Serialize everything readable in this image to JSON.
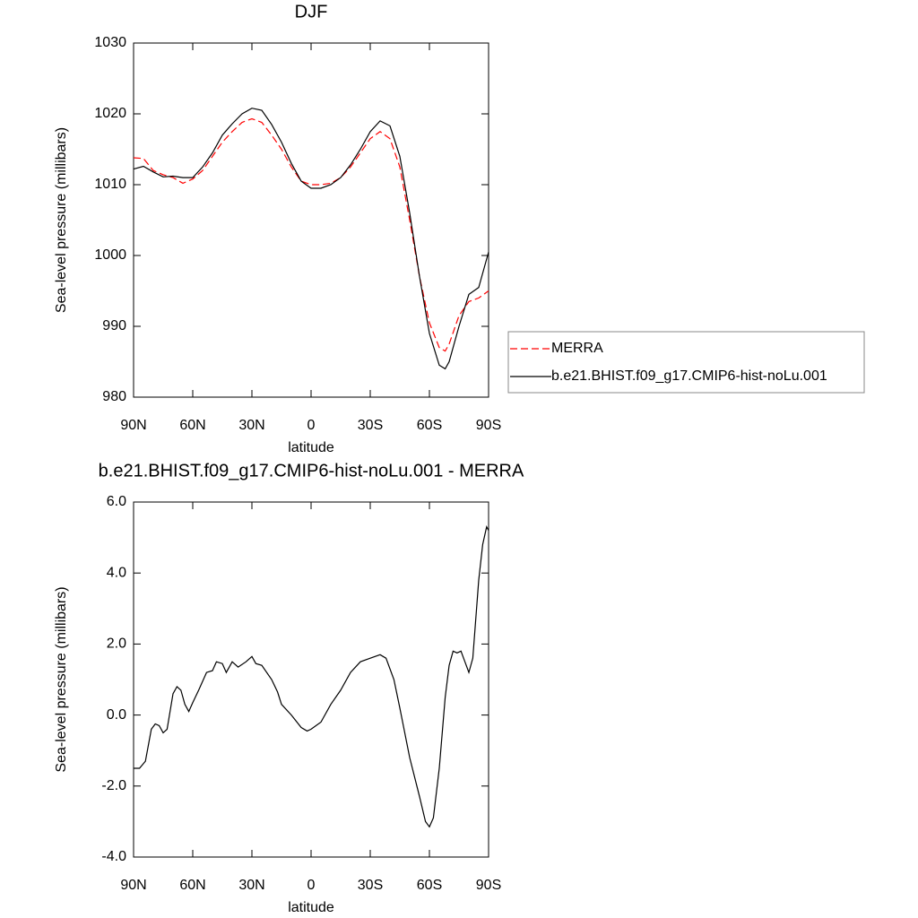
{
  "chart_data": [
    {
      "type": "line",
      "title": "DJF",
      "xlabel": "latitude",
      "ylabel": "Sea-level pressure (millibars)",
      "xlim": [
        90,
        -90
      ],
      "xticks": [
        {
          "value": 90,
          "label": "90N"
        },
        {
          "value": 60,
          "label": "60N"
        },
        {
          "value": 30,
          "label": "30N"
        },
        0,
        {
          "value": -30,
          "label": "30S"
        },
        {
          "value": -60,
          "label": "60S"
        },
        {
          "value": -90,
          "label": "90S"
        }
      ],
      "ylim": [
        980,
        1030
      ],
      "yticks": [
        980,
        990,
        1000,
        1010,
        1020,
        1030
      ],
      "legend": "right",
      "x": [
        90,
        85,
        80,
        75,
        70,
        65,
        60,
        55,
        50,
        45,
        40,
        35,
        30,
        25,
        20,
        15,
        10,
        5,
        0,
        -5,
        -10,
        -15,
        -20,
        -25,
        -30,
        -35,
        -40,
        -45,
        -50,
        -55,
        -60,
        -65,
        -68,
        -70,
        -75,
        -80,
        -85,
        -90
      ],
      "series": [
        {
          "name": "MERRA",
          "color": "#ff0000",
          "style": "dashed",
          "values": [
            1013.8,
            1013.7,
            1012,
            1011.4,
            1011,
            1010.2,
            1010.8,
            1012,
            1014,
            1016,
            1017.5,
            1018.8,
            1019.3,
            1018.8,
            1017,
            1015,
            1012.5,
            1010.5,
            1010,
            1010,
            1010.2,
            1011,
            1012.5,
            1014.5,
            1016.5,
            1017.5,
            1016.5,
            1012.5,
            1005,
            997,
            990.5,
            987,
            986.5,
            987.5,
            991.5,
            993.5,
            994,
            995
          ]
        },
        {
          "name": "b.e21.BHIST.f09_g17.CMIP6-hist-noLu.001",
          "color": "#000000",
          "style": "solid",
          "values": [
            1012.2,
            1012.6,
            1011.8,
            1011.1,
            1011.2,
            1011,
            1011,
            1012.5,
            1014.5,
            1017,
            1018.6,
            1020,
            1020.8,
            1020.5,
            1018.5,
            1016,
            1013,
            1010.5,
            1009.5,
            1009.5,
            1010,
            1011,
            1012.8,
            1015,
            1017.5,
            1019,
            1018.3,
            1014,
            1006,
            997,
            989,
            984.5,
            984,
            985,
            990,
            994.5,
            995.5,
            1000.5
          ]
        }
      ]
    },
    {
      "type": "line",
      "title": "b.e21.BHIST.f09_g17.CMIP6-hist-noLu.001 - MERRA",
      "xlabel": "latitude",
      "ylabel": "Sea-level pressure (millibars)",
      "xlim": [
        90,
        -90
      ],
      "xticks": [
        {
          "value": 90,
          "label": "90N"
        },
        {
          "value": 60,
          "label": "60N"
        },
        {
          "value": 30,
          "label": "30N"
        },
        0,
        {
          "value": -30,
          "label": "30S"
        },
        {
          "value": -60,
          "label": "60S"
        },
        {
          "value": -90,
          "label": "90S"
        }
      ],
      "ylim": [
        -4,
        6
      ],
      "yticks": [
        {
          "value": -4,
          "label": "-4.0"
        },
        {
          "value": -2,
          "label": "-2.0"
        },
        {
          "value": 0,
          "label": "0.0"
        },
        {
          "value": 2,
          "label": "2.0"
        },
        {
          "value": 4,
          "label": "4.0"
        },
        {
          "value": 6,
          "label": "6.0"
        }
      ],
      "x": [
        90,
        87,
        84,
        81,
        79,
        77,
        75,
        73,
        70,
        68,
        66,
        64,
        62,
        60,
        57,
        53,
        50,
        48,
        45,
        43,
        40,
        37,
        33,
        30,
        28,
        25,
        20,
        17,
        15,
        10,
        5,
        2,
        0,
        -5,
        -10,
        -15,
        -20,
        -25,
        -30,
        -35,
        -38,
        -42,
        -45,
        -50,
        -55,
        -58,
        -60,
        -62,
        -65,
        -68,
        -70,
        -72,
        -74,
        -76,
        -78,
        -80,
        -82,
        -85,
        -87,
        -89,
        -90
      ],
      "color": "#000000",
      "values": [
        -1.5,
        -1.5,
        -1.3,
        -0.4,
        -0.25,
        -0.3,
        -0.5,
        -0.4,
        0.6,
        0.8,
        0.7,
        0.3,
        0.1,
        0.35,
        0.7,
        1.2,
        1.25,
        1.5,
        1.45,
        1.2,
        1.5,
        1.35,
        1.5,
        1.65,
        1.45,
        1.4,
        1.0,
        0.65,
        0.3,
        0,
        -0.35,
        -0.45,
        -0.4,
        -0.2,
        0.3,
        0.7,
        1.2,
        1.5,
        1.6,
        1.7,
        1.6,
        1.0,
        0.2,
        -1.2,
        -2.3,
        -3.0,
        -3.15,
        -2.9,
        -1.5,
        0.5,
        1.4,
        1.8,
        1.75,
        1.8,
        1.5,
        1.2,
        1.6,
        3.8,
        4.8,
        5.3,
        5.2
      ]
    }
  ]
}
